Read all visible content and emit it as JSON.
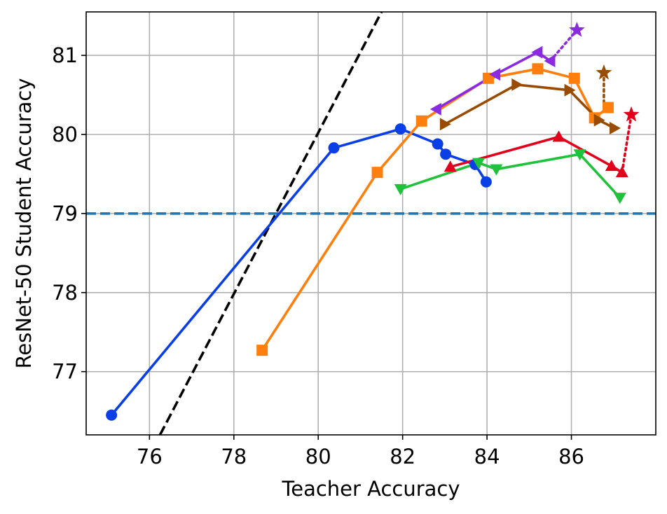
{
  "chart_data": {
    "type": "line",
    "xlabel": "Teacher Accuracy",
    "ylabel": "ResNet-50 Student Accuracy",
    "xlim": [
      74.5,
      88.0
    ],
    "ylim": [
      76.2,
      81.55
    ],
    "xticks": [
      76,
      78,
      80,
      82,
      84,
      86
    ],
    "yticks": [
      77,
      78,
      79,
      80,
      81
    ],
    "grid": true,
    "reference_lines": [
      {
        "kind": "horizontal",
        "y": 79.0,
        "color": "#1f77b4",
        "style": "dashed"
      },
      {
        "kind": "diagonal",
        "points": [
          [
            76.25,
            76.2
          ],
          [
            81.5,
            81.55
          ]
        ],
        "color": "#000000",
        "style": "dashed"
      }
    ],
    "series": [
      {
        "color": "#0a3fe6",
        "marker": "circle",
        "points": [
          [
            75.1,
            76.45
          ],
          [
            80.37,
            79.83
          ],
          [
            81.95,
            80.07
          ],
          [
            82.83,
            79.88
          ],
          [
            83.02,
            79.75
          ],
          [
            83.72,
            79.62
          ],
          [
            83.98,
            79.4
          ]
        ]
      },
      {
        "color": "#ff7f0e",
        "marker": "square",
        "points": [
          [
            78.67,
            77.27
          ],
          [
            81.4,
            79.52
          ],
          [
            82.45,
            80.17
          ],
          [
            84.03,
            80.71
          ],
          [
            85.2,
            80.83
          ],
          [
            86.07,
            80.71
          ],
          [
            86.55,
            80.21
          ],
          [
            86.87,
            80.34
          ]
        ]
      },
      {
        "color": "#8a2be2",
        "marker": "triangle-left",
        "points": [
          [
            82.8,
            80.32
          ],
          [
            84.2,
            80.76
          ],
          [
            85.2,
            81.04
          ],
          [
            85.5,
            80.93
          ]
        ]
      },
      {
        "color": "#994c00",
        "marker": "triangle-right",
        "points": [
          [
            83.0,
            80.13
          ],
          [
            84.7,
            80.63
          ],
          [
            85.95,
            80.56
          ],
          [
            86.65,
            80.18
          ],
          [
            87.02,
            80.08
          ]
        ]
      },
      {
        "color": "#e0001b",
        "marker": "triangle-up",
        "points": [
          [
            83.13,
            79.59
          ],
          [
            85.7,
            79.97
          ],
          [
            86.95,
            79.6
          ],
          [
            87.2,
            79.52
          ]
        ]
      },
      {
        "color": "#1fc23a",
        "marker": "triangle-down",
        "points": [
          [
            81.95,
            79.31
          ],
          [
            83.8,
            79.64
          ],
          [
            84.22,
            79.56
          ],
          [
            86.2,
            79.75
          ],
          [
            87.15,
            79.2
          ]
        ]
      }
    ],
    "dotted_connectors": [
      {
        "color": "#8a2be2",
        "from": [
          85.5,
          80.93
        ],
        "to": [
          86.13,
          81.32
        ],
        "end_marker": "star"
      },
      {
        "color": "#994c00",
        "from": [
          86.77,
          80.33
        ],
        "to": [
          86.77,
          80.78
        ],
        "end_marker": "star"
      },
      {
        "color": "#e0001b",
        "from": [
          87.2,
          79.52
        ],
        "to": [
          87.42,
          80.25
        ],
        "end_marker": "star"
      }
    ]
  }
}
